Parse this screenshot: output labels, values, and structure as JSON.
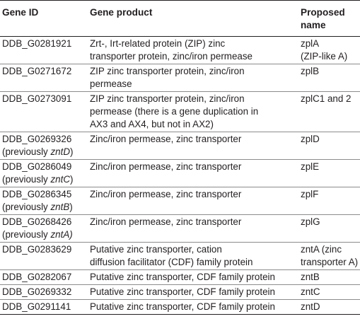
{
  "header": {
    "gene_id": "Gene ID",
    "gene_product": "Gene product",
    "proposed_name_l1": "Proposed",
    "proposed_name_l2": "name"
  },
  "rows": [
    {
      "id_l1": "DDB_G0281921",
      "id_l2": "",
      "id_prev": "",
      "product_l1": "Zrt-, Irt-related protein (ZIP) zinc",
      "product_l2": "transporter protein, zinc/iron permease",
      "product_l3": "",
      "name_l1": "zplA",
      "name_l2": "(ZIP-like A)"
    },
    {
      "id_l1": "DDB_G0271672",
      "id_l2": "",
      "id_prev": "",
      "product_l1": "ZIP zinc transporter protein, zinc/iron",
      "product_l2": "permease",
      "product_l3": "",
      "name_l1": "zplB",
      "name_l2": ""
    },
    {
      "id_l1": "DDB_G0273091",
      "id_l2": "",
      "id_prev": "",
      "product_l1": "ZIP zinc transporter protein, zinc/iron",
      "product_l2": "permease (there is a gene duplication in",
      "product_l3": "AX3 and AX4, but not in AX2)",
      "name_l1": "zplC1 and 2",
      "name_l2": ""
    },
    {
      "id_l1": "DDB_G0269326",
      "id_l2": "(previously ",
      "id_prev": "zntD",
      "id_close": ")",
      "product_l1": "Zinc/iron permease, zinc transporter",
      "product_l2": "",
      "product_l3": "",
      "name_l1": "zplD",
      "name_l2": ""
    },
    {
      "id_l1": "DDB_G0286049",
      "id_l2": "(previously ",
      "id_prev": "zntC",
      "id_close": ")",
      "product_l1": "Zinc/iron permease, zinc transporter",
      "product_l2": "",
      "product_l3": "",
      "name_l1": "zplE",
      "name_l2": ""
    },
    {
      "id_l1": "DDB_G0286345",
      "id_l2": "(previously ",
      "id_prev": "zntB",
      "id_close": ")",
      "product_l1": "Zinc/iron permease, zinc transporter",
      "product_l2": "",
      "product_l3": "",
      "name_l1": "zplF",
      "name_l2": ""
    },
    {
      "id_l1": "DDB_G0268426",
      "id_l2": "(previously ",
      "id_prev": "zntA)",
      "id_close": "",
      "product_l1": "Zinc/iron permease, zinc transporter",
      "product_l2": "",
      "product_l3": "",
      "name_l1": "zplG",
      "name_l2": ""
    },
    {
      "id_l1": "DDB_G0283629",
      "id_l2": "",
      "id_prev": "",
      "product_l1": "Putative zinc transporter, cation",
      "product_l2": "diffusion facilitator (CDF) family protein",
      "product_l3": "",
      "name_l1": "zntA (zinc",
      "name_l2": "transporter A)"
    },
    {
      "id_l1": "DDB_G0282067",
      "id_l2": "",
      "id_prev": "",
      "product_l1": "Putative zinc transporter, CDF family protein",
      "product_l2": "",
      "product_l3": "",
      "name_l1": "zntB",
      "name_l2": ""
    },
    {
      "id_l1": "DDB_G0269332",
      "id_l2": "",
      "id_prev": "",
      "product_l1": "Putative zinc transporter, CDF family protein",
      "product_l2": "",
      "product_l3": "",
      "name_l1": "zntC",
      "name_l2": ""
    },
    {
      "id_l1": "DDB_G0291141",
      "id_l2": "",
      "id_prev": "",
      "product_l1": "Putative zinc transporter, CDF family protein",
      "product_l2": "",
      "product_l3": "",
      "name_l1": "zntD",
      "name_l2": ""
    }
  ]
}
